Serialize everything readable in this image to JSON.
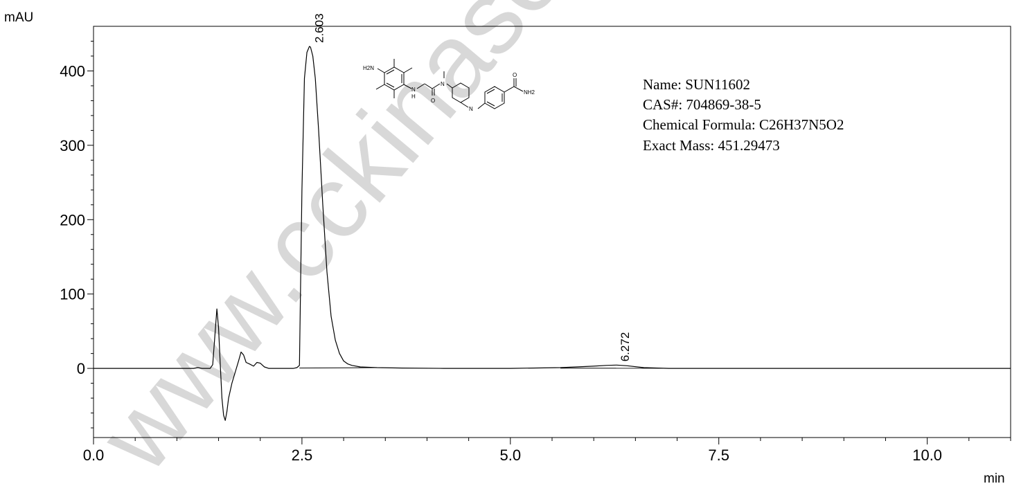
{
  "chart_data": {
    "type": "line",
    "y_unit": "mAU",
    "x_unit": "min",
    "xlim": [
      0.0,
      11.0
    ],
    "ylim": [
      -93,
      460
    ],
    "x_ticks": [
      "0.0",
      "2.5",
      "5.0",
      "7.5",
      "10.0"
    ],
    "x_tick_values": [
      0.0,
      2.5,
      5.0,
      7.5,
      10.0
    ],
    "y_ticks": [
      "0",
      "100",
      "200",
      "300",
      "400"
    ],
    "y_tick_values": [
      0,
      100,
      200,
      300,
      400
    ],
    "grid": false,
    "series": [
      {
        "x": [
          0.0,
          1.2,
          1.25,
          1.3,
          1.35,
          1.4,
          1.43,
          1.46,
          1.48,
          1.5,
          1.52,
          1.54,
          1.56,
          1.58,
          1.6,
          1.62,
          1.66,
          1.7,
          1.74,
          1.77,
          1.8,
          1.83,
          1.87,
          1.92,
          1.96,
          2.0,
          2.05,
          2.1,
          2.2,
          2.3,
          2.4,
          2.44,
          2.47,
          2.5,
          2.53,
          2.56,
          2.59,
          2.603,
          2.63,
          2.66,
          2.7,
          2.75,
          2.8,
          2.85,
          2.9,
          2.95,
          3.0,
          3.05,
          3.1,
          3.2,
          3.4,
          3.7,
          4.2,
          5.0,
          5.6,
          6.0,
          6.15,
          6.272,
          6.4,
          6.6,
          6.9,
          7.5,
          11.0
        ],
        "y": [
          0,
          0,
          1,
          0,
          0,
          0,
          5,
          50,
          80,
          55,
          5,
          -40,
          -63,
          -70,
          -58,
          -40,
          -20,
          -5,
          10,
          22,
          18,
          8,
          6,
          3,
          8,
          7,
          2,
          0,
          0,
          0,
          0,
          1,
          4,
          240,
          390,
          425,
          433,
          432,
          420,
          390,
          320,
          220,
          130,
          70,
          38,
          20,
          10,
          6,
          4,
          2,
          1,
          0.5,
          0,
          0,
          1,
          3,
          4,
          4.5,
          3.5,
          1,
          0,
          0,
          0
        ]
      }
    ],
    "peak_labels": [
      {
        "text": "2.603",
        "x": 2.603,
        "y": 433
      },
      {
        "text": "6.272",
        "x": 6.272,
        "y": 4.5
      }
    ],
    "info_lines": [
      "Name: SUN11602",
      "CAS#: 704869-38-5",
      "Chemical Formula: C26H37N5O2",
      "Exact Mass: 451.29473"
    ],
    "watermark": "www.cckinase.cc",
    "molecule_labels": {
      "amine": "H2N",
      "nh": "N",
      "h": "H",
      "o": "O",
      "n1": "N",
      "n2": "N",
      "amide_n": "NH2",
      "amide_o": "O"
    }
  }
}
